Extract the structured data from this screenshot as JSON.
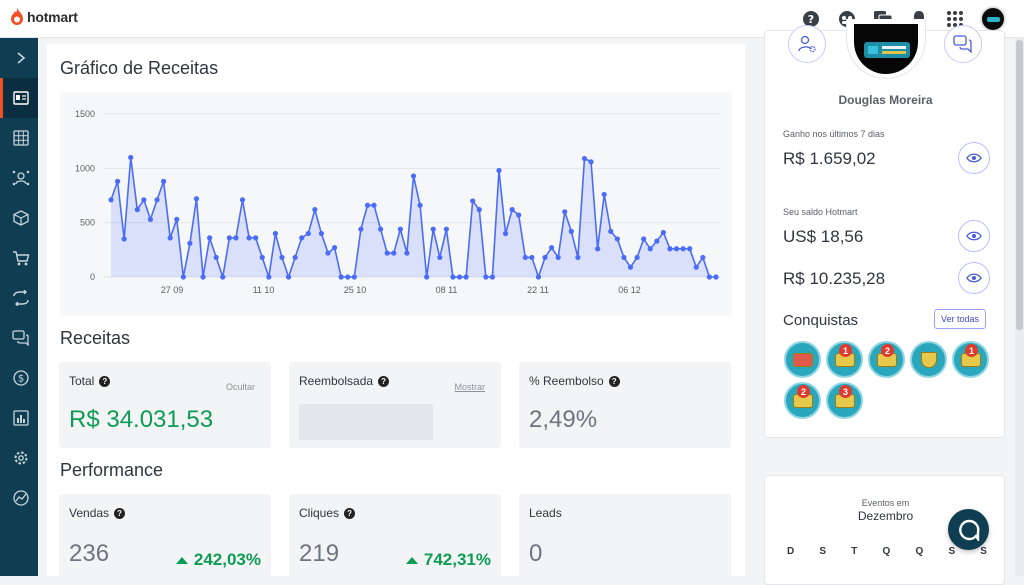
{
  "app": {
    "brand": "hotmart"
  },
  "topbar": {
    "icons": [
      "help-icon",
      "community-icon",
      "messages-icon",
      "bell-icon",
      "apps-grid-icon",
      "user-avatar"
    ]
  },
  "sidebar": {
    "items": [
      "expand-icon",
      "dashboard-icon",
      "grid-icon",
      "affiliates-icon",
      "products-icon",
      "cart-icon",
      "transfer-icon",
      "chat-icon",
      "money-icon",
      "reports-icon",
      "settings-icon",
      "analytics-icon"
    ],
    "active_index": 1
  },
  "chart_section": {
    "title": "Gráfico de Receitas"
  },
  "chart_data": {
    "type": "area",
    "title": "Gráfico de Receitas",
    "ylim": [
      0,
      1500
    ],
    "yticks": [
      "1500",
      "1000",
      "500",
      "0"
    ],
    "xticks": [
      "27 09",
      "11 10",
      "25 10",
      "08 11",
      "22 11",
      "06 12"
    ],
    "grid": true,
    "series": [
      {
        "values": [
          710,
          880,
          350,
          1100,
          620,
          710,
          530,
          710,
          880,
          360,
          530,
          0,
          310,
          720,
          0,
          360,
          180,
          0,
          360,
          360,
          710,
          360,
          360,
          180,
          0,
          400,
          180,
          0,
          180,
          360,
          400,
          620,
          400,
          220,
          270,
          0,
          0,
          0,
          440,
          660,
          660,
          440,
          220,
          220,
          440,
          220,
          930,
          660,
          0,
          440,
          180,
          440,
          0,
          0,
          0,
          700,
          620,
          0,
          0,
          980,
          400,
          620,
          570,
          180,
          180,
          0,
          180,
          270,
          180,
          600,
          420,
          180,
          1090,
          1060,
          260,
          760,
          420,
          350,
          180,
          90,
          180,
          350,
          260,
          330,
          410,
          260,
          260,
          260,
          260,
          90,
          180,
          0,
          0
        ]
      }
    ]
  },
  "receitas": {
    "title": "Receitas",
    "total": {
      "label": "Total",
      "action": "Ocultar",
      "value": "R$ 34.031,53"
    },
    "reembolsada": {
      "label": "Reembolsada",
      "action": "Mostrar"
    },
    "reembolso": {
      "label": "% Reembolso",
      "value": "2,49%"
    }
  },
  "performance": {
    "title": "Performance",
    "vendas": {
      "label": "Vendas",
      "value": "236",
      "delta": "242,03%"
    },
    "cliques": {
      "label": "Cliques",
      "value": "219",
      "delta": "742,31%"
    },
    "leads": {
      "label": "Leads",
      "value": "0"
    }
  },
  "profile": {
    "name": "Douglas Moreira",
    "earned_label": "Ganho nos últimos 7 dias",
    "earned_value": "R$ 1.659,02",
    "balance_label": "Seu saldo Hotmart",
    "balance_usd": "US$ 18,56",
    "balance_brl": "R$ 10.235,28",
    "achievements_title": "Conquistas",
    "see_all": "Ver todas",
    "badges": [
      "",
      "1",
      "2",
      "",
      "1",
      "2",
      "3"
    ]
  },
  "events": {
    "label": "Eventos em",
    "month": "Dezembro",
    "weekdays": [
      "D",
      "S",
      "T",
      "Q",
      "Q",
      "S",
      "S"
    ]
  },
  "colors": {
    "accent": "#4a6cf7",
    "success": "#0d9c54",
    "sidebar": "#0f3d52",
    "brand": "#f04e23"
  }
}
